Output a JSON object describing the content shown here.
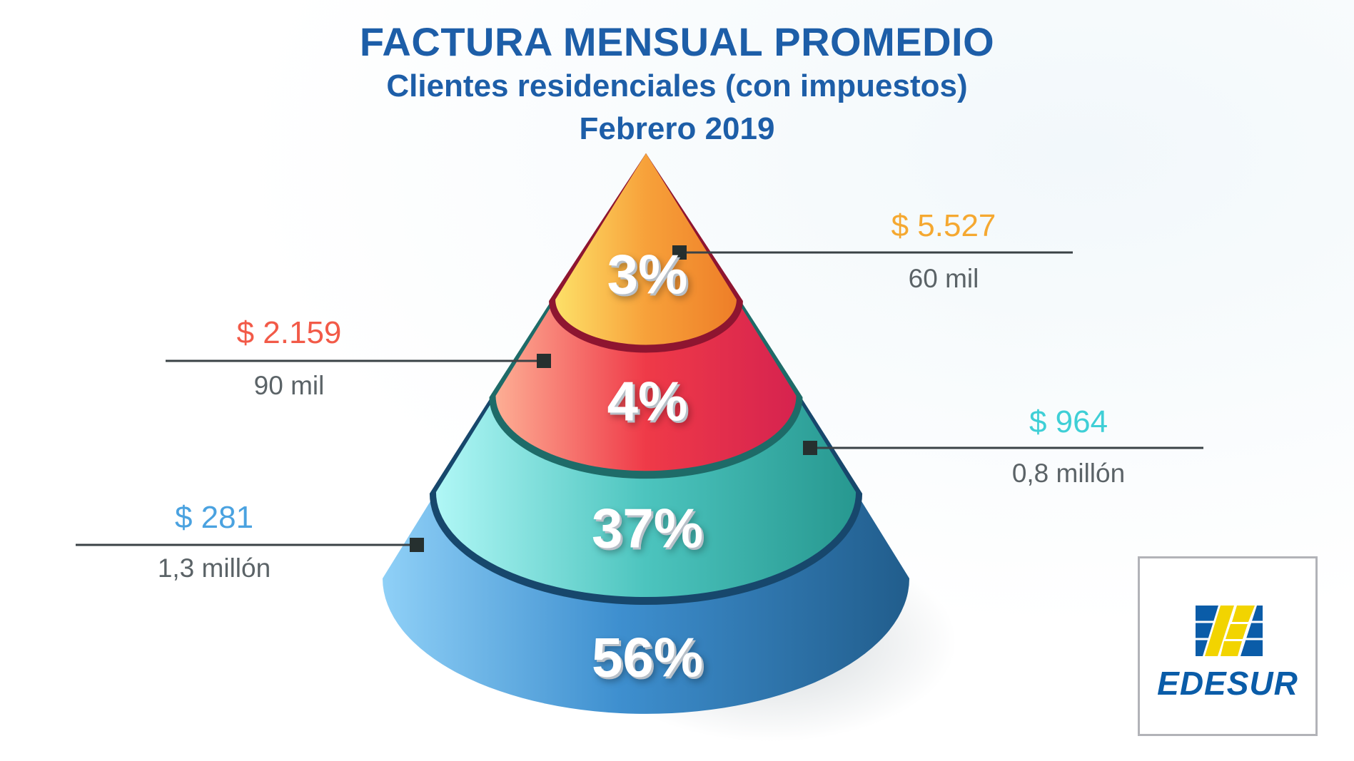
{
  "header": {
    "title": "FACTURA MENSUAL PROMEDIO",
    "subtitle": "Clientes residenciales (con impuestos)",
    "period": "Febrero 2019"
  },
  "chart_data": {
    "type": "pyramid",
    "title": "FACTURA MENSUAL PROMEDIO",
    "subtitle": "Clientes residenciales (con impuestos) - Febrero 2019",
    "levels": [
      {
        "share_label": "3%",
        "share": 3,
        "bill_label": "$ 5.527",
        "bill": 5527,
        "clients_label": "60 mil",
        "color": "#f5a830"
      },
      {
        "share_label": "4%",
        "share": 4,
        "bill_label": "$ 2.159",
        "bill": 2159,
        "clients_label": "90 mil",
        "color": "#f25a48"
      },
      {
        "share_label": "37%",
        "share": 37,
        "bill_label": "$ 964",
        "bill": 964,
        "clients_label": "0,8 millón",
        "color": "#3fcfd6"
      },
      {
        "share_label": "56%",
        "share": 56,
        "bill_label": "$ 281",
        "bill": 281,
        "clients_label": "1,3 millón",
        "color": "#4aa2e0"
      }
    ]
  },
  "logo": {
    "text": "EDESUR",
    "blue": "#0a5ca8",
    "yellow": "#f2d400"
  }
}
